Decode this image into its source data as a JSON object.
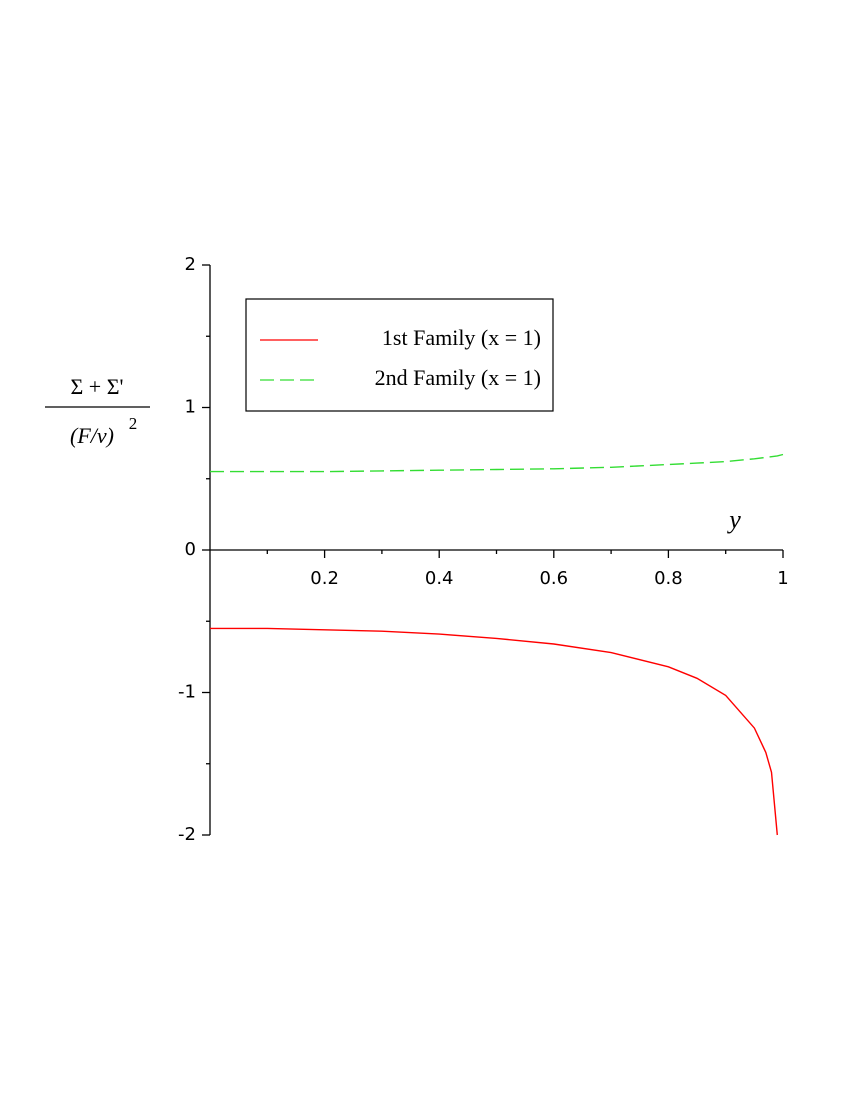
{
  "chart_data": {
    "type": "line",
    "ylabel": {
      "numerator": "Σ + Σ'",
      "denominator": "(F/v)",
      "denominator_exponent": "2"
    },
    "xlabel": "y",
    "x": [
      0,
      0.1,
      0.2,
      0.3,
      0.4,
      0.5,
      0.6,
      0.7,
      0.8,
      0.85,
      0.9,
      0.95,
      0.97,
      0.98,
      0.99,
      1
    ],
    "series": [
      {
        "name": "1st Family (x = 1)",
        "color": "#ff0000",
        "style": "solid",
        "values": [
          -0.55,
          -0.55,
          -0.56,
          -0.57,
          -0.59,
          -0.62,
          -0.66,
          -0.72,
          -0.82,
          -0.9,
          -1.02,
          -1.25,
          -1.42,
          -1.56,
          -2.0,
          null
        ]
      },
      {
        "name": "2nd Family (x = 1)",
        "color": "#33dd33",
        "style": "dashed",
        "values": [
          0.55,
          0.55,
          0.55,
          0.555,
          0.56,
          0.565,
          0.57,
          0.58,
          0.6,
          0.61,
          0.62,
          0.64,
          0.65,
          0.655,
          0.66,
          0.67
        ]
      }
    ],
    "xlim": [
      0,
      1
    ],
    "xticks": [
      0.2,
      0.4,
      0.6,
      0.8,
      1
    ],
    "xminorticks": [
      0.1,
      0.3,
      0.5,
      0.7,
      0.9
    ],
    "ylim": [
      -2,
      2
    ],
    "yticks": [
      -2,
      -1,
      0,
      1,
      2
    ],
    "yminorticks": [
      -1.5,
      -0.5,
      0.5,
      1.5
    ],
    "legend": "top-left",
    "grid": false
  }
}
